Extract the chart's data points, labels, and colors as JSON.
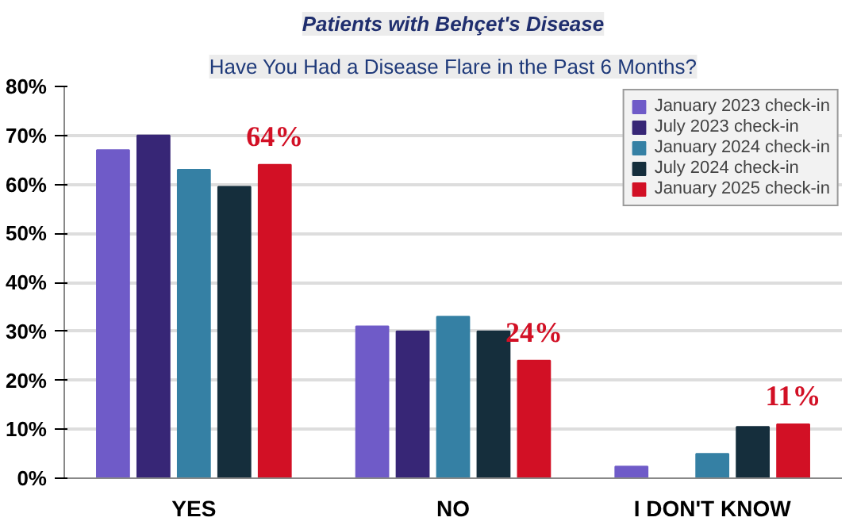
{
  "chart_data": {
    "type": "bar",
    "title": "Patients with Behçet's Disease",
    "subtitle": "Have You Had a Disease Flare in the Past 6 Months?",
    "categories": [
      "YES",
      "NO",
      "I DON'T KNOW"
    ],
    "ylim": [
      0,
      80
    ],
    "yticks": [
      {
        "value": 0,
        "label": "0%"
      },
      {
        "value": 10,
        "label": "10%"
      },
      {
        "value": 20,
        "label": "20%"
      },
      {
        "value": 30,
        "label": "30%"
      },
      {
        "value": 40,
        "label": "40%"
      },
      {
        "value": 50,
        "label": "50%"
      },
      {
        "value": 60,
        "label": "60%"
      },
      {
        "value": 70,
        "label": "70%"
      },
      {
        "value": 80,
        "label": "80%"
      }
    ],
    "grid": "y",
    "legend": "top right",
    "series": [
      {
        "name": "January 2023 check-in",
        "color": "#6f5bc8",
        "values": [
          67,
          31,
          2.4
        ]
      },
      {
        "name": "July 2023 check-in",
        "color": "#372676",
        "values": [
          70,
          30,
          null
        ]
      },
      {
        "name": "January 2024 check-in",
        "color": "#3580a4",
        "values": [
          63,
          33,
          5
        ]
      },
      {
        "name": "July 2024 check-in",
        "color": "#152e3c",
        "values": [
          59.5,
          30,
          10.5
        ]
      },
      {
        "name": "January 2025 check-in",
        "color": "#d21025",
        "values": [
          64,
          24,
          11
        ],
        "value_labels": [
          "64%",
          "24%",
          "11%"
        ]
      }
    ]
  }
}
